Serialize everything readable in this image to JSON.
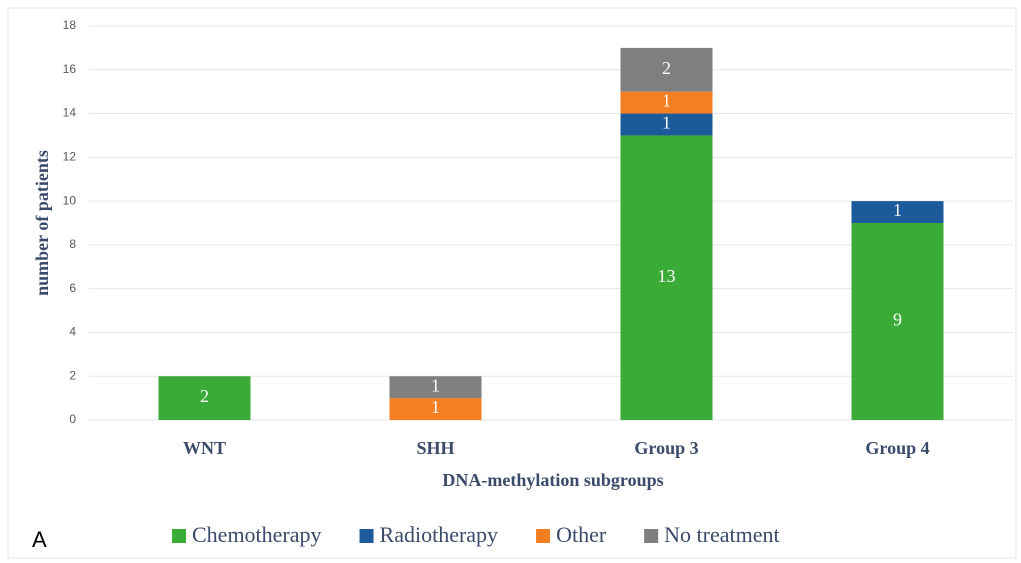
{
  "chart_data": {
    "type": "stacked-bar",
    "x_label": "DNA-methylation subgroups",
    "y_label": "number of patients",
    "panel_label": "A",
    "categories": [
      "WNT",
      "SHH",
      "Group 3",
      "Group 4"
    ],
    "series": [
      {
        "name": "Chemotherapy",
        "color": "#3aab36",
        "values": [
          2,
          0,
          13,
          9
        ]
      },
      {
        "name": "Radiotherapy",
        "color": "#1d5a9c",
        "values": [
          0,
          0,
          1,
          1
        ]
      },
      {
        "name": "Other",
        "color": "#f47e22",
        "values": [
          0,
          1,
          1,
          0
        ]
      },
      {
        "name": "No treatment",
        "color": "#7f7f7f",
        "values": [
          0,
          1,
          2,
          0
        ]
      }
    ],
    "ylim": [
      0,
      18
    ],
    "yticks": [
      0,
      2,
      4,
      6,
      8,
      10,
      12,
      14,
      16,
      18
    ],
    "grid": true,
    "legend": "bottom"
  }
}
